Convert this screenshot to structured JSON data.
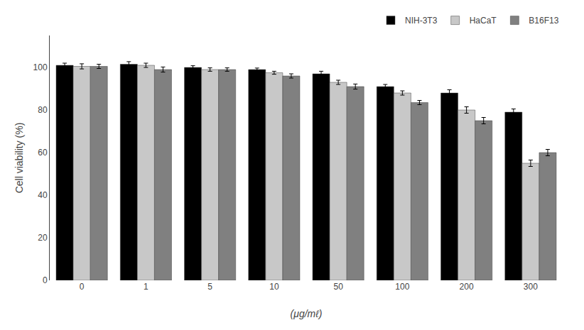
{
  "chart_data": {
    "type": "bar",
    "categories": [
      "0",
      "1",
      "5",
      "10",
      "50",
      "100",
      "200",
      "300"
    ],
    "xlabel": "(μg/mℓ)",
    "ylabel": "Cell viability (%)",
    "ylim": [
      0,
      115
    ],
    "yticks": [
      0,
      20,
      40,
      60,
      80,
      100
    ],
    "grid": false,
    "legend": "upper right",
    "series": [
      {
        "name": "NIH-3T3",
        "color": "#000000",
        "values": [
          101,
          101.5,
          100,
          99,
          97,
          91,
          88,
          79
        ],
        "errors": [
          1.0,
          1.2,
          0.8,
          0.7,
          1.2,
          1.0,
          1.5,
          1.5
        ]
      },
      {
        "name": "HaCaT",
        "color": "#c8c8c8",
        "values": [
          100.5,
          101,
          99,
          97.5,
          93,
          88,
          80,
          55
        ],
        "errors": [
          1.2,
          1.0,
          0.8,
          0.7,
          1.0,
          1.0,
          1.5,
          1.5
        ]
      },
      {
        "name": "B16F13",
        "color": "#808080",
        "values": [
          100.5,
          99,
          99,
          96,
          91,
          83.5,
          75,
          60
        ],
        "errors": [
          1.0,
          1.2,
          0.8,
          1.0,
          1.2,
          1.0,
          1.5,
          1.5
        ]
      }
    ]
  }
}
